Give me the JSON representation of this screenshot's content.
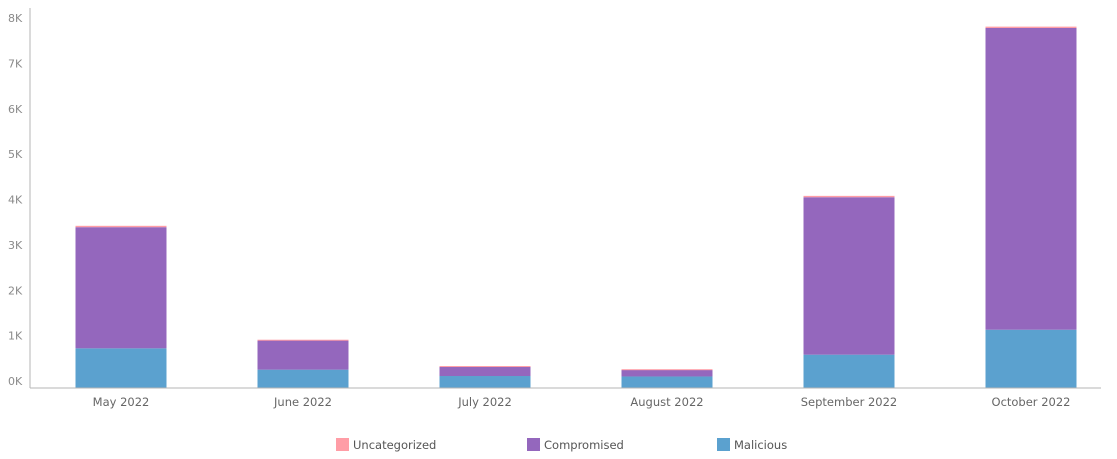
{
  "chart_data": {
    "type": "bar",
    "stacked": true,
    "title": "",
    "xlabel": "",
    "ylabel": "",
    "categories": [
      "May 2022",
      "June 2022",
      "July 2022",
      "August 2022",
      "September 2022",
      "October 2022"
    ],
    "series": [
      {
        "name": "Malicious",
        "color": "#5ba1cf",
        "values": [
          720,
          250,
          110,
          100,
          580,
          1130
        ]
      },
      {
        "name": "Compromised",
        "color": "#9467bd",
        "values": [
          2670,
          650,
          210,
          150,
          3470,
          6650
        ]
      },
      {
        "name": "Uncategorized",
        "color": "#ff9da6",
        "values": [
          30,
          10,
          10,
          10,
          30,
          30
        ]
      }
    ],
    "ylim": [
      0,
      8200
    ],
    "yticks": [
      0,
      1000,
      2000,
      3000,
      4000,
      5000,
      6000,
      7000,
      8000
    ],
    "ytick_labels": [
      "0K",
      "1K",
      "2K",
      "3K",
      "4K",
      "5K",
      "6K",
      "7K",
      "8K"
    ],
    "grid": false,
    "legend": {
      "position": "bottom-center",
      "entries": [
        {
          "name": "Uncategorized",
          "color": "#ff9da6"
        },
        {
          "name": "Compromised",
          "color": "#9467bd"
        },
        {
          "name": "Malicious",
          "color": "#5ba1cf"
        }
      ]
    }
  }
}
